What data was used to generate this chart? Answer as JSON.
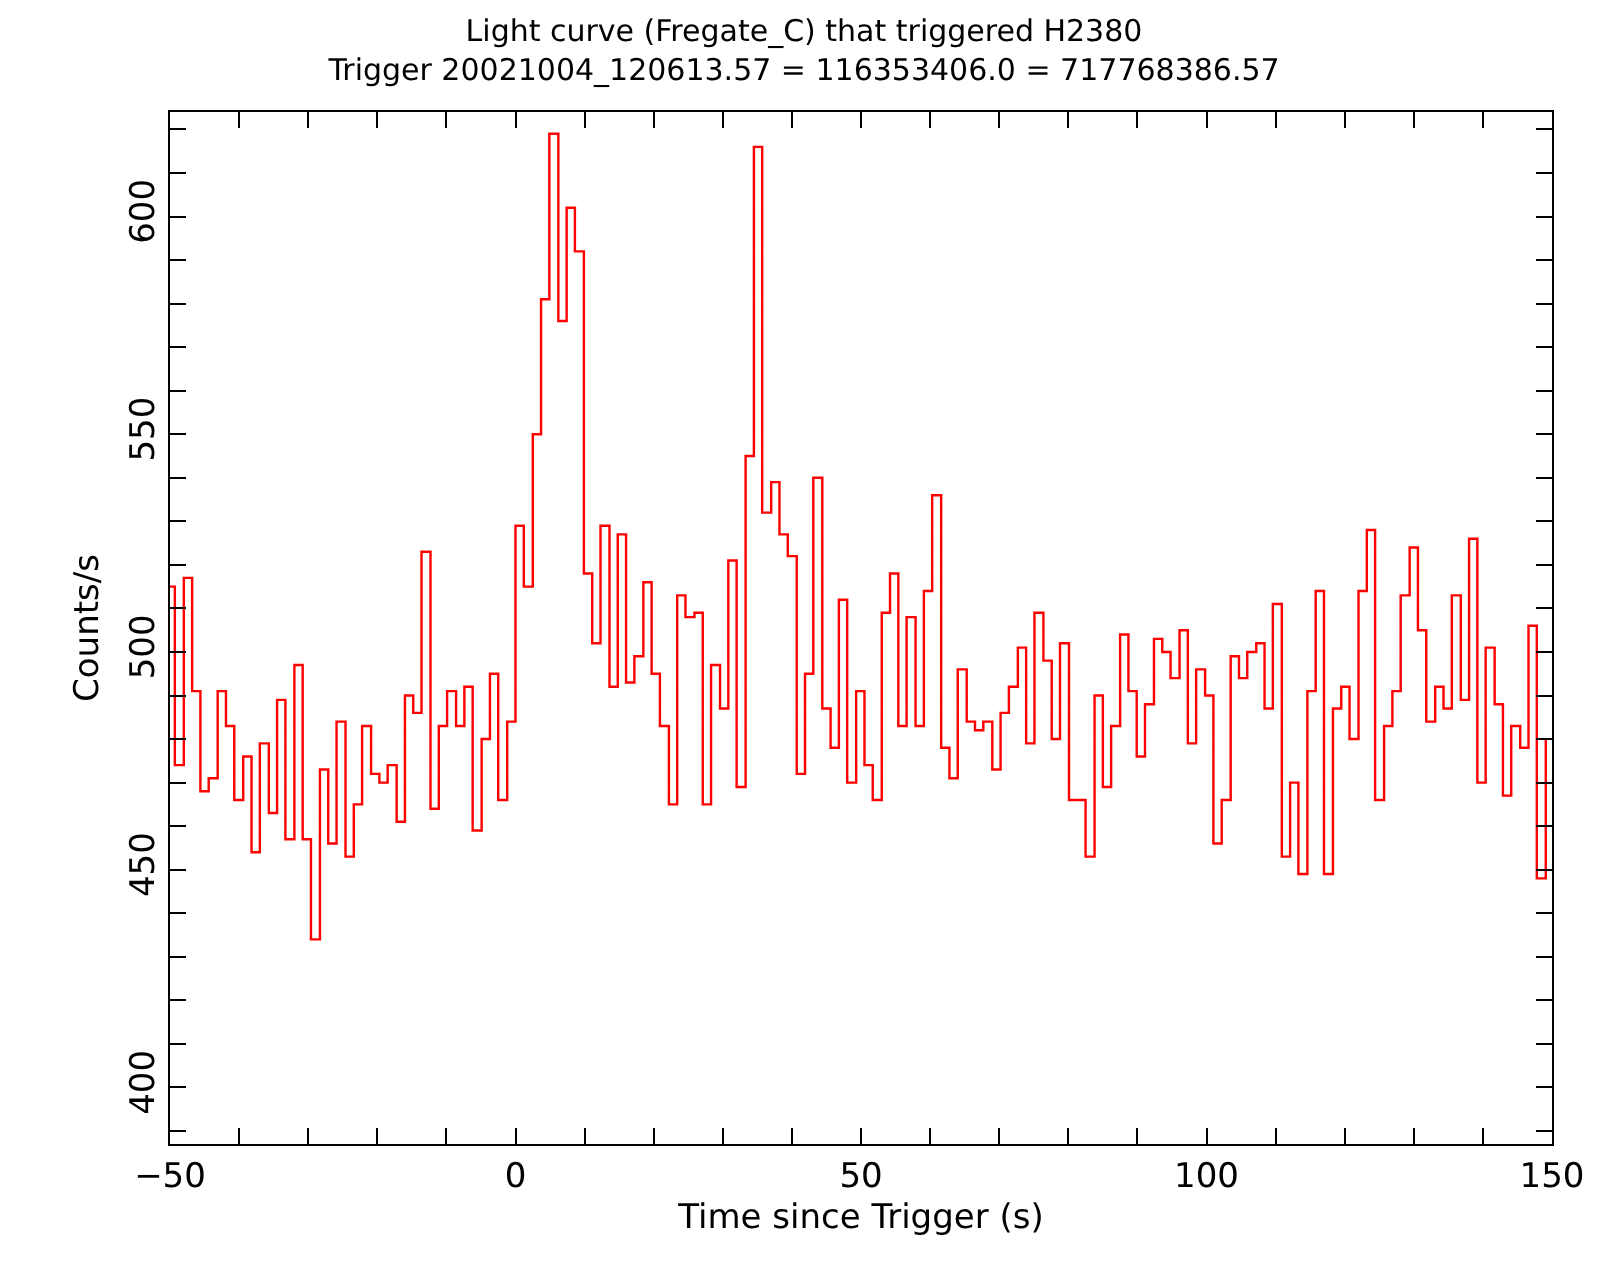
{
  "chart_data": {
    "type": "step",
    "title": "Light curve (Fregate_C) that triggered H2380",
    "subtitle": "Trigger 20021004_120613.57 = 116353406.0 = 717768386.57",
    "xlabel": "Time since Trigger (s)",
    "ylabel": "Counts/s",
    "x": [
      -50,
      -49.3,
      -48.0,
      -46.8,
      -45.6,
      -44.4,
      -43.1,
      -41.9,
      -40.7,
      -39.4,
      -38.2,
      -37.0,
      -35.7,
      -34.5,
      -33.3,
      -32.0,
      -30.8,
      -29.6,
      -28.3,
      -27.1,
      -25.9,
      -24.6,
      -23.4,
      -22.2,
      -20.9,
      -19.7,
      -18.5,
      -17.2,
      -16.0,
      -14.8,
      -13.6,
      -12.3,
      -11.1,
      -9.9,
      -8.6,
      -7.4,
      -6.2,
      -4.9,
      -3.7,
      -2.5,
      -1.2,
      0,
      1.2,
      2.5,
      3.7,
      4.9,
      6.2,
      7.4,
      8.6,
      9.9,
      11.1,
      12.3,
      13.6,
      14.8,
      16.0,
      17.2,
      18.5,
      19.7,
      20.9,
      22.2,
      23.4,
      24.6,
      25.9,
      27.1,
      28.3,
      29.6,
      30.8,
      32.0,
      33.3,
      34.5,
      35.7,
      37.0,
      38.2,
      39.4,
      40.7,
      41.9,
      43.1,
      44.4,
      45.6,
      46.8,
      48.0,
      49.3,
      50.5,
      51.7,
      53.0,
      54.2,
      55.4,
      56.6,
      57.9,
      59.1,
      60.3,
      61.6,
      62.8,
      64.0,
      65.3,
      66.5,
      67.7,
      69.0,
      70.2,
      71.4,
      72.7,
      73.9,
      75.1,
      76.4,
      77.6,
      78.8,
      80.1,
      81.3,
      82.5,
      83.8,
      85.0,
      86.2,
      87.5,
      88.7,
      89.9,
      91.1,
      92.4,
      93.6,
      94.8,
      96.1,
      97.3,
      98.5,
      99.8,
      101.0,
      102.2,
      103.5,
      104.7,
      105.9,
      107.2,
      108.4,
      109.6,
      110.9,
      112.1,
      113.3,
      114.6,
      115.8,
      117.0,
      118.3,
      119.5,
      120.7,
      122.0,
      123.2,
      124.4,
      125.7,
      126.9,
      128.1,
      129.4,
      130.6,
      131.8,
      133.1,
      134.3,
      135.5,
      136.8,
      138.0,
      139.2,
      140.4,
      141.7,
      142.9,
      144.1,
      145.4,
      146.6,
      147.8,
      149.1
    ],
    "series": [
      {
        "color": "#ff0000",
        "values": [
          515,
          474,
          517,
          491,
          468,
          471,
          491,
          483,
          466,
          476,
          454,
          479,
          463,
          489,
          457,
          497,
          457,
          434,
          473,
          456,
          484,
          453,
          465,
          483,
          472,
          470,
          474,
          461,
          490,
          486,
          523,
          464,
          483,
          491,
          483,
          492,
          459,
          480,
          495,
          466,
          484,
          529,
          515,
          550,
          581,
          619,
          576,
          602,
          592,
          518,
          502,
          529,
          492,
          527,
          493,
          499,
          516,
          495,
          483,
          465,
          513,
          508,
          509,
          465,
          497,
          487,
          521,
          469,
          545,
          616,
          532,
          539,
          527,
          522,
          472,
          495,
          540,
          487,
          478,
          512,
          470,
          491,
          474,
          466,
          509,
          518,
          483,
          508,
          483,
          514,
          536,
          478,
          471,
          496,
          484,
          482,
          484,
          473,
          486,
          492,
          501,
          479,
          509,
          498,
          480,
          502,
          466,
          466,
          453,
          490,
          469,
          483,
          504,
          491,
          476,
          488,
          503,
          500,
          494,
          505,
          479,
          496,
          490,
          456,
          466,
          499,
          494,
          500,
          502,
          487,
          511,
          453,
          470,
          449,
          491,
          514,
          449,
          487,
          492,
          480,
          514,
          528,
          466,
          483,
          491,
          513,
          524,
          505,
          484,
          492,
          487,
          513,
          489,
          526,
          470,
          501,
          488,
          467,
          483,
          478,
          506,
          448,
          480
        ]
      }
    ],
    "xlim": [
      -50,
      150
    ],
    "ylim": [
      387,
      624
    ],
    "xticks": [
      -50,
      {
        "value": -40,
        "label": null
      },
      {
        "value": -30,
        "label": null
      },
      {
        "value": -20,
        "label": null
      },
      {
        "value": -10,
        "label": null
      },
      0,
      {
        "value": 10,
        "label": null
      },
      {
        "value": 20,
        "label": null
      },
      {
        "value": 30,
        "label": null
      },
      {
        "value": 40,
        "label": null
      },
      50,
      {
        "value": 60,
        "label": null
      },
      {
        "value": 70,
        "label": null
      },
      {
        "value": 80,
        "label": null
      },
      {
        "value": 90,
        "label": null
      },
      100,
      {
        "value": 110,
        "label": null
      },
      {
        "value": 120,
        "label": null
      },
      {
        "value": 130,
        "label": null
      },
      {
        "value": 140,
        "label": null
      },
      150
    ],
    "yticks": [
      {
        "value": 390,
        "label": null
      },
      400,
      {
        "value": 410,
        "label": null
      },
      {
        "value": 420,
        "label": null
      },
      {
        "value": 430,
        "label": null
      },
      {
        "value": 440,
        "label": null
      },
      450,
      {
        "value": 460,
        "label": null
      },
      {
        "value": 470,
        "label": null
      },
      {
        "value": 480,
        "label": null
      },
      {
        "value": 490,
        "label": null
      },
      500,
      {
        "value": 510,
        "label": null
      },
      {
        "value": 520,
        "label": null
      },
      {
        "value": 530,
        "label": null
      },
      {
        "value": 540,
        "label": null
      },
      550,
      {
        "value": 560,
        "label": null
      },
      {
        "value": 570,
        "label": null
      },
      {
        "value": 580,
        "label": null
      },
      {
        "value": 590,
        "label": null
      },
      600,
      {
        "value": 610,
        "label": null
      },
      {
        "value": 620,
        "label": null
      }
    ]
  }
}
